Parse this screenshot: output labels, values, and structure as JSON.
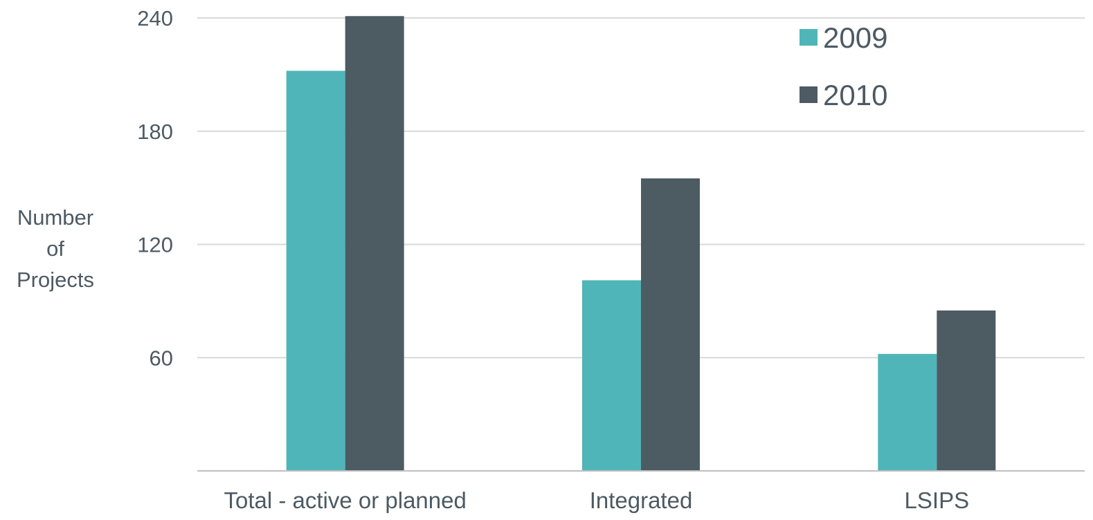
{
  "chart_data": {
    "type": "bar",
    "title": "",
    "xlabel": "",
    "ylabel_lines": [
      "Number",
      "of",
      "Projects"
    ],
    "categories": [
      "Total - active or planned",
      "Integrated",
      "LSIPS"
    ],
    "series": [
      {
        "name": "2009",
        "values": [
          212,
          101,
          62
        ],
        "color": "#4fb5b8"
      },
      {
        "name": "2010",
        "values": [
          241,
          155,
          85
        ],
        "color": "#4d5b63"
      }
    ],
    "ylim": [
      0,
      240
    ],
    "yticks": [
      60,
      120,
      180,
      240
    ],
    "grid": true,
    "legend_position": "top-right"
  }
}
